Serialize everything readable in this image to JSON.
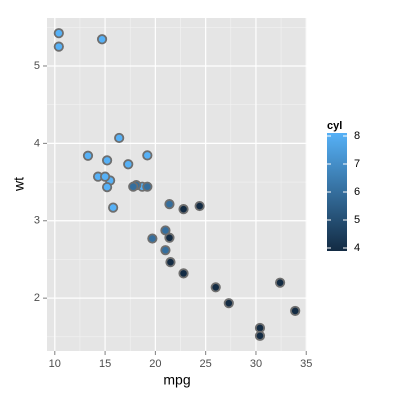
{
  "chart_data": {
    "type": "scatter",
    "x_label": "mpg",
    "y_label": "wt",
    "xlim": [
      9.225,
      35.075
    ],
    "ylim": [
      1.317,
      5.62
    ],
    "xticks": [
      10,
      15,
      20,
      25,
      30,
      35
    ],
    "yticks": [
      2,
      3,
      4,
      5
    ],
    "grid": true,
    "series": [
      {
        "x": [
          21,
          21,
          22.8,
          21.4,
          18.7,
          18.1,
          14.3,
          24.4,
          22.8,
          19.2,
          17.8,
          16.4,
          17.3,
          15.2,
          10.4,
          10.4,
          14.7,
          32.4,
          30.4,
          33.9,
          21.5,
          15.5,
          15.2,
          13.3,
          19.2,
          27.3,
          26,
          30.4,
          15.8,
          19.7,
          15,
          21.4
        ],
        "values": [
          2.62,
          2.875,
          2.32,
          3.215,
          3.44,
          3.46,
          3.57,
          3.19,
          3.15,
          3.44,
          3.44,
          4.07,
          3.73,
          3.78,
          5.25,
          5.424,
          5.345,
          2.2,
          1.615,
          1.835,
          2.465,
          3.52,
          3.435,
          3.84,
          3.845,
          1.935,
          2.14,
          1.513,
          3.17,
          2.77,
          3.57,
          2.78
        ],
        "color_values": [
          6,
          6,
          4,
          6,
          8,
          6,
          8,
          4,
          4,
          6,
          6,
          8,
          8,
          8,
          8,
          8,
          8,
          4,
          4,
          4,
          4,
          8,
          8,
          8,
          8,
          4,
          4,
          4,
          8,
          6,
          8,
          4
        ]
      }
    ],
    "legend": {
      "title": "cyl",
      "limits": [
        4,
        8
      ],
      "ticks": [
        4,
        5,
        6,
        7,
        8
      ],
      "low_color": "#132b43",
      "high_color": "#56b1f7"
    }
  }
}
